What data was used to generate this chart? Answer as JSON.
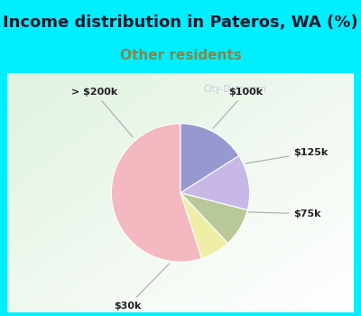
{
  "title": "Income distribution in Pateros, WA (%)",
  "subtitle": "Other residents",
  "title_fontsize": 13,
  "subtitle_fontsize": 11,
  "title_color": "#1a1a2e",
  "subtitle_color": "#7a8a50",
  "background_color": "#00eeff",
  "chart_bg_top_left": "#e8f4ee",
  "chart_bg_bottom_right": "#ffffff",
  "slices": [
    {
      "label": "$30k",
      "value": 55,
      "color": "#f4b8c0"
    },
    {
      "label": "$75k",
      "value": 7,
      "color": "#eeeea8"
    },
    {
      "label": "$125k",
      "value": 9,
      "color": "#b8c898"
    },
    {
      "label": "$100k",
      "value": 13,
      "color": "#c8b8e8"
    },
    {
      "label": "> $200k",
      "value": 16,
      "color": "#9898d0"
    }
  ],
  "startangle": 90,
  "label_fontsize": 8,
  "label_color": "#222222"
}
